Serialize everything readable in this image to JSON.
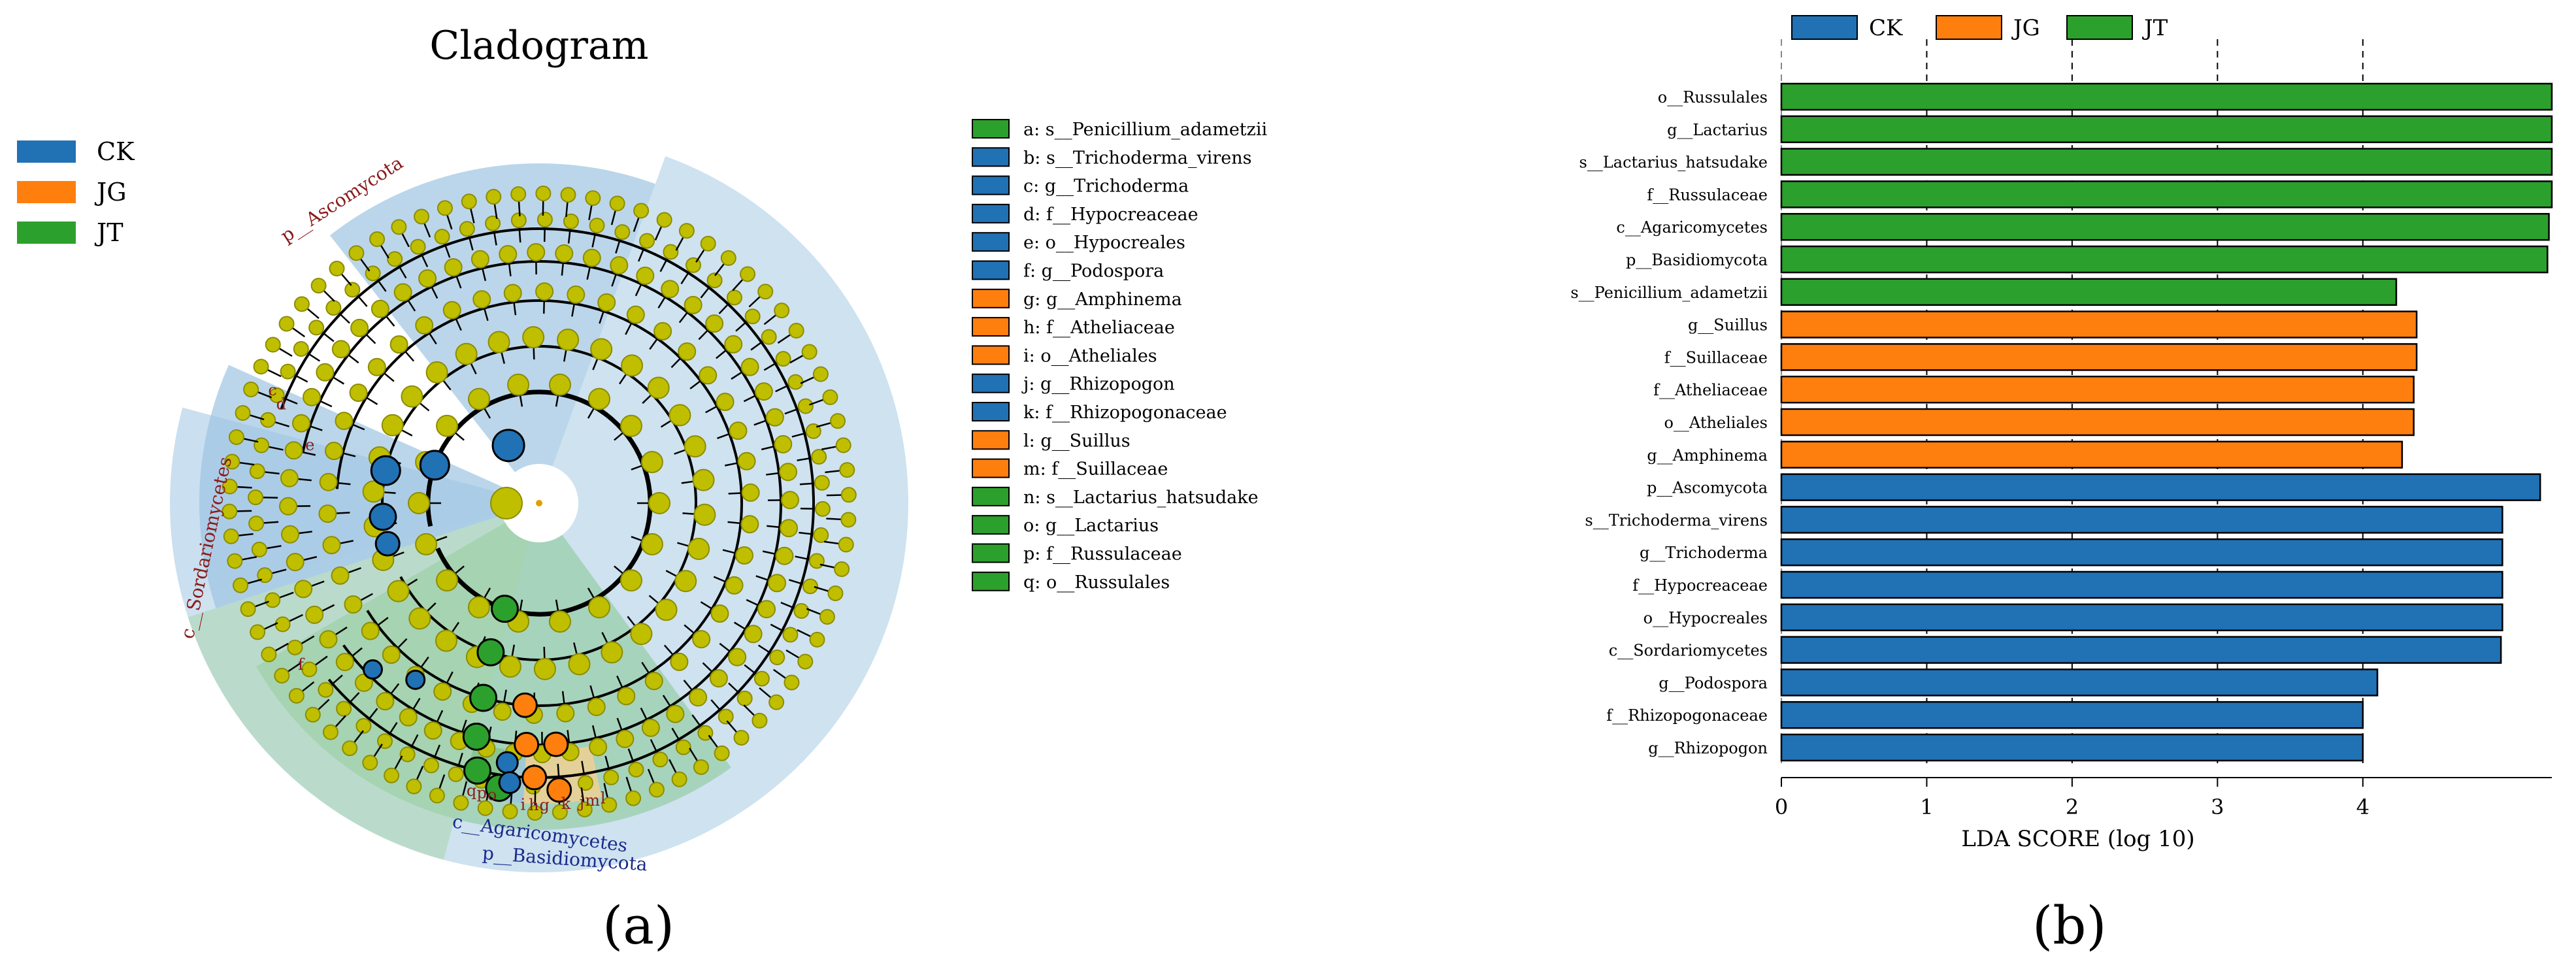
{
  "colors": {
    "CK": "#2171b5",
    "JG": "#ff7f0e",
    "JT": "#2ca02c",
    "node": "#bfbf00",
    "node_dark": "#8c8c00"
  },
  "panel_a": {
    "label": "(a)",
    "title": "Cladogram",
    "group_legend": [
      {
        "name": "CK",
        "color": "#2171b5"
      },
      {
        "name": "JG",
        "color": "#ff7f0e"
      },
      {
        "name": "JT",
        "color": "#2ca02c"
      }
    ],
    "clade_labels": {
      "ascomycota": "p__Ascomycota",
      "sordariomycetes": "c__Sordariomycetes",
      "basidiomycota": "p__Basidiomycota",
      "agaricomycetes": "c__Agaricomycetes"
    },
    "letter_markers": [
      "e",
      "d",
      "c",
      "f",
      "i",
      "h",
      "g",
      "k",
      "j",
      "m",
      "l",
      "q",
      "p",
      "o"
    ],
    "taxa_legend": [
      {
        "key": "a",
        "name": "s__Penicillium_adametzii",
        "group": "JT"
      },
      {
        "key": "b",
        "name": "s__Trichoderma_virens",
        "group": "CK"
      },
      {
        "key": "c",
        "name": "g__Trichoderma",
        "group": "CK"
      },
      {
        "key": "d",
        "name": "f__Hypocreaceae",
        "group": "CK"
      },
      {
        "key": "e",
        "name": "o__Hypocreales",
        "group": "CK"
      },
      {
        "key": "f",
        "name": "g__Podospora",
        "group": "CK"
      },
      {
        "key": "g",
        "name": "g__Amphinema",
        "group": "JG"
      },
      {
        "key": "h",
        "name": "f__Atheliaceae",
        "group": "JG"
      },
      {
        "key": "i",
        "name": "o__Atheliales",
        "group": "JG"
      },
      {
        "key": "j",
        "name": "g__Rhizopogon",
        "group": "CK"
      },
      {
        "key": "k",
        "name": "f__Rhizopogonaceae",
        "group": "CK"
      },
      {
        "key": "l",
        "name": "g__Suillus",
        "group": "JG"
      },
      {
        "key": "m",
        "name": "f__Suillaceae",
        "group": "JG"
      },
      {
        "key": "n",
        "name": "s__Lactarius_hatsudake",
        "group": "JT"
      },
      {
        "key": "o",
        "name": "g__Lactarius",
        "group": "JT"
      },
      {
        "key": "p",
        "name": "f__Russulaceae",
        "group": "JT"
      },
      {
        "key": "q",
        "name": "o__Russulales",
        "group": "JT"
      }
    ]
  },
  "chart_data": {
    "type": "bar",
    "orientation": "horizontal",
    "label": "(b)",
    "xlabel": "LDA SCORE (log 10)",
    "xlim": [
      0,
      5.3
    ],
    "xticks": [
      0,
      1,
      2,
      3,
      4
    ],
    "gridlines": "dashed vertical at ticks",
    "legend": [
      {
        "name": "CK",
        "color": "#2171b5"
      },
      {
        "name": "JG",
        "color": "#ff7f0e"
      },
      {
        "name": "JT",
        "color": "#2ca02c"
      }
    ],
    "legend_position": "top",
    "bars": [
      {
        "label": "o__Russulales",
        "value": 5.3,
        "group": "JT"
      },
      {
        "label": "g__Lactarius",
        "value": 5.3,
        "group": "JT"
      },
      {
        "label": "s__Lactarius_hatsudake",
        "value": 5.3,
        "group": "JT"
      },
      {
        "label": "f__Russulaceae",
        "value": 5.3,
        "group": "JT"
      },
      {
        "label": "c__Agaricomycetes",
        "value": 5.28,
        "group": "JT"
      },
      {
        "label": "p__Basidiomycota",
        "value": 5.27,
        "group": "JT"
      },
      {
        "label": "s__Penicillium_adametzii",
        "value": 4.23,
        "group": "JT"
      },
      {
        "label": "g__Suillus",
        "value": 4.37,
        "group": "JG"
      },
      {
        "label": "f__Suillaceae",
        "value": 4.37,
        "group": "JG"
      },
      {
        "label": "f__Atheliaceae",
        "value": 4.35,
        "group": "JG"
      },
      {
        "label": "o__Atheliales",
        "value": 4.35,
        "group": "JG"
      },
      {
        "label": "g__Amphinema",
        "value": 4.27,
        "group": "JG"
      },
      {
        "label": "p__Ascomycota",
        "value": 5.22,
        "group": "CK"
      },
      {
        "label": "s__Trichoderma_virens",
        "value": 4.96,
        "group": "CK"
      },
      {
        "label": "g__Trichoderma",
        "value": 4.96,
        "group": "CK"
      },
      {
        "label": "f__Hypocreaceae",
        "value": 4.96,
        "group": "CK"
      },
      {
        "label": "o__Hypocreales",
        "value": 4.96,
        "group": "CK"
      },
      {
        "label": "c__Sordariomycetes",
        "value": 4.95,
        "group": "CK"
      },
      {
        "label": "g__Podospora",
        "value": 4.1,
        "group": "CK"
      },
      {
        "label": "f__Rhizopogonaceae",
        "value": 4.0,
        "group": "CK"
      },
      {
        "label": "g__Rhizopogon",
        "value": 4.0,
        "group": "CK"
      }
    ]
  }
}
